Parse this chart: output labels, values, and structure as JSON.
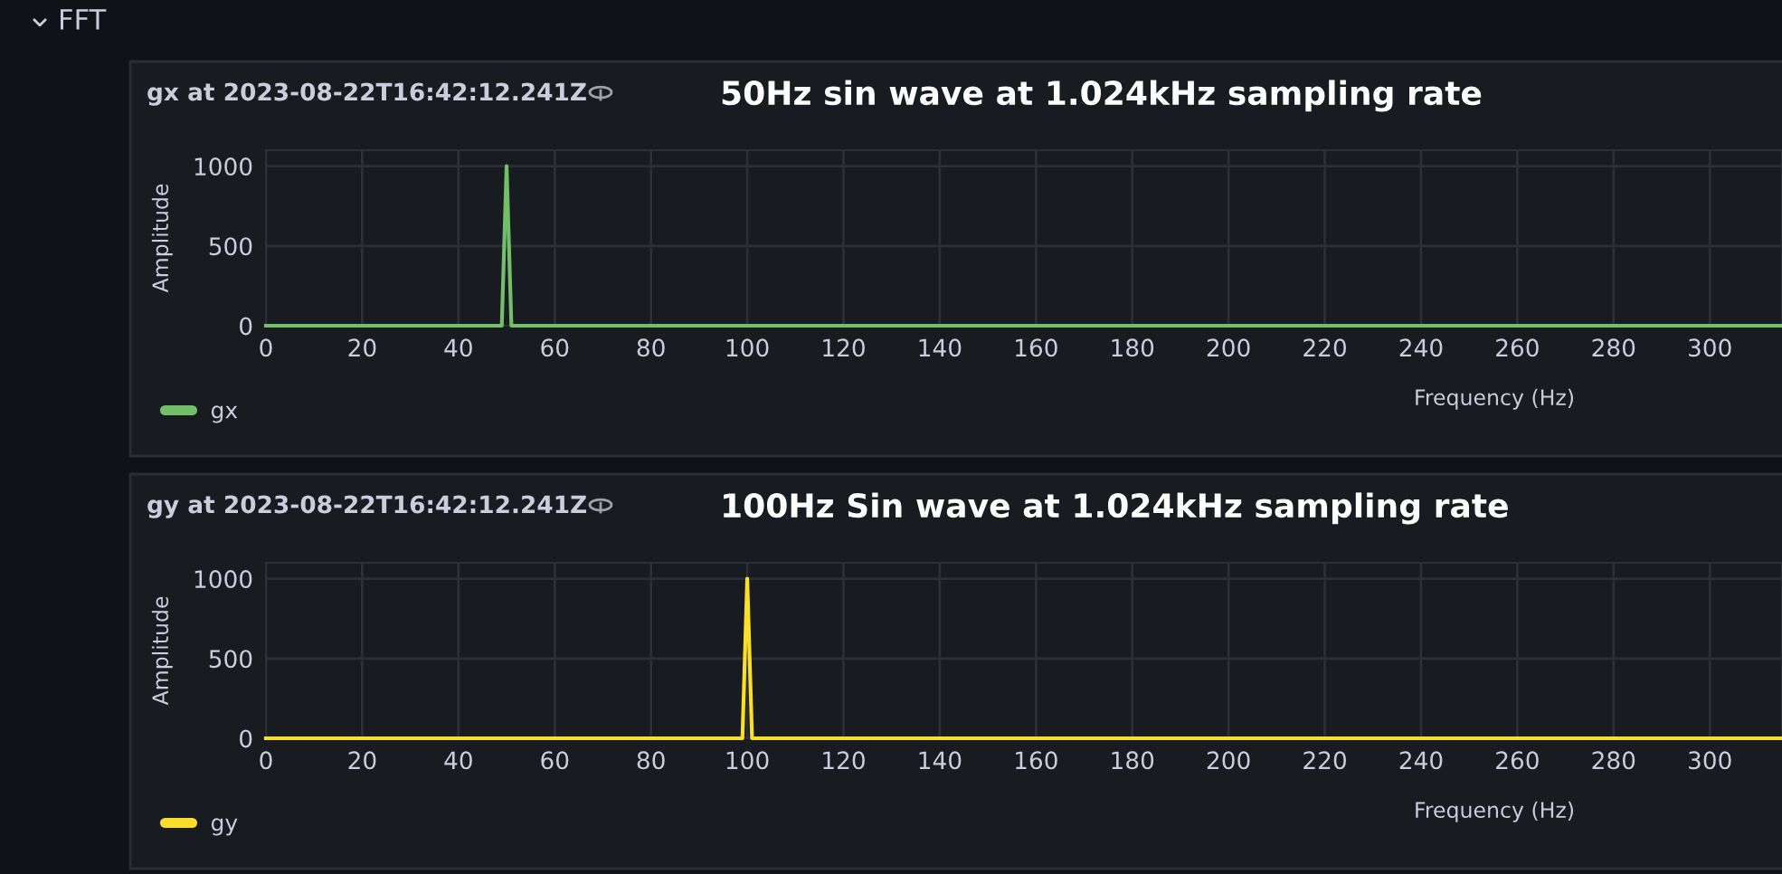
{
  "chart_data": [
    {
      "type": "line",
      "title": "gx at 2023-08-22T16:42:12.241Z",
      "subtitle": "50Hz sin wave at 1.024kHz sampling rate",
      "annotations": [
        "FFT"
      ],
      "xlabel": "Frequency (Hz)",
      "ylabel": "Amplitude",
      "series": [
        {
          "name": "gx",
          "color": "#73bf69",
          "x": [
            0,
            49,
            50,
            51,
            315
          ],
          "values": [
            0,
            0,
            1000,
            0,
            0
          ]
        }
      ],
      "xlim": [
        0,
        315
      ],
      "xticks": [
        0,
        20,
        40,
        60,
        80,
        100,
        120,
        140,
        160,
        180,
        200,
        220,
        240,
        260,
        280,
        300
      ],
      "ylim": [
        0,
        1100
      ],
      "yticks": [
        0,
        500,
        1000
      ],
      "grid": true,
      "legend": "bottom left",
      "marker": "none",
      "line_style": "solid"
    },
    {
      "type": "line",
      "title": "gy at 2023-08-22T16:42:12.241Z",
      "subtitle": "100Hz Sin wave at 1.024kHz sampling rate",
      "xlabel": "Frequency (Hz)",
      "ylabel": "Amplitude",
      "series": [
        {
          "name": "gy",
          "color": "#fade2a",
          "x": [
            0,
            99,
            100,
            101,
            315
          ],
          "values": [
            0,
            0,
            1000,
            0,
            0
          ]
        }
      ],
      "xlim": [
        0,
        315
      ],
      "xticks": [
        0,
        20,
        40,
        60,
        80,
        100,
        120,
        140,
        160,
        180,
        200,
        220,
        240,
        260,
        280,
        300
      ],
      "ylim": [
        0,
        1100
      ],
      "yticks": [
        0,
        500,
        1000
      ],
      "grid": true,
      "legend": "bottom left",
      "marker": "none",
      "line_style": "solid"
    }
  ]
}
